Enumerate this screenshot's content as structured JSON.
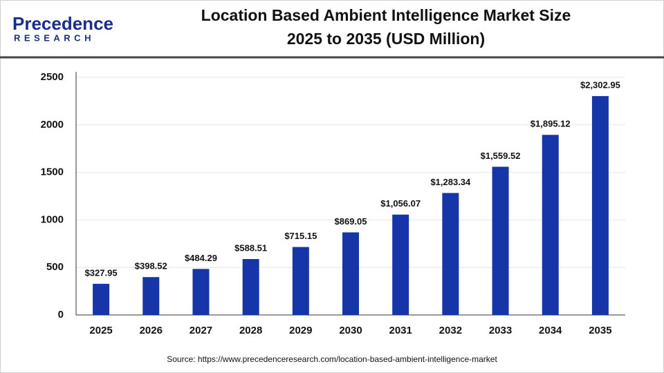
{
  "logo": {
    "name": "Precedence",
    "tagline": "RESEARCH"
  },
  "chart_data": {
    "type": "bar",
    "title": "Location Based Ambient Intelligence Market Size",
    "subtitle": "2025 to 2035 (USD Million)",
    "categories": [
      "2025",
      "2026",
      "2027",
      "2028",
      "2029",
      "2030",
      "2031",
      "2032",
      "2033",
      "2034",
      "2035"
    ],
    "values": [
      327.95,
      398.52,
      484.29,
      588.51,
      715.15,
      869.05,
      1056.07,
      1283.34,
      1559.52,
      1895.12,
      2302.95
    ],
    "value_labels": [
      "$327.95",
      "$398.52",
      "$484.29",
      "$588.51",
      "$715.15",
      "$869.05",
      "$1,056.07",
      "$1,283.34",
      "$1,559.52",
      "$1,895.12",
      "$2,302.95"
    ],
    "color": "#1535a8",
    "ylim": [
      0,
      2500
    ],
    "yticks": [
      0,
      500,
      1000,
      1500,
      2000,
      2500
    ],
    "grid": true,
    "source": "Source: https://www.precedenceresearch.com/location-based-ambient-intelligence-market"
  }
}
